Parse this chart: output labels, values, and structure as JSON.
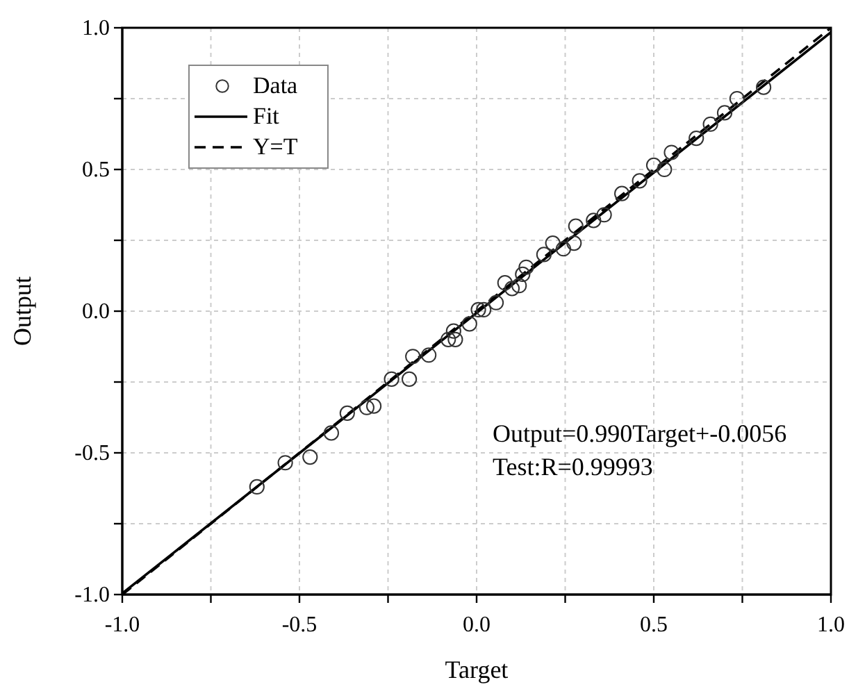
{
  "chart_data": {
    "type": "scatter",
    "xlabel": "Target",
    "ylabel": "Output",
    "xlim": [
      -1,
      1
    ],
    "ylim": [
      -1,
      1
    ],
    "xticks": [
      {
        "value": -1,
        "label": "-1.0"
      },
      {
        "value": -0.75,
        "label": null
      },
      {
        "value": -0.5,
        "label": "-0.5"
      },
      {
        "value": -0.25,
        "label": null
      },
      {
        "value": 0,
        "label": "0.0"
      },
      {
        "value": 0.25,
        "label": null
      },
      {
        "value": 0.5,
        "label": "0.5"
      },
      {
        "value": 0.75,
        "label": null
      },
      {
        "value": 1,
        "label": "1.0"
      }
    ],
    "yticks": [
      {
        "value": -1,
        "label": "-1.0"
      },
      {
        "value": -0.75,
        "label": null
      },
      {
        "value": -0.5,
        "label": "-0.5"
      },
      {
        "value": -0.25,
        "label": null
      },
      {
        "value": 0,
        "label": "0.0"
      },
      {
        "value": 0.25,
        "label": null
      },
      {
        "value": 0.5,
        "label": "0.5"
      },
      {
        "value": 0.75,
        "label": null
      },
      {
        "value": 1,
        "label": "1.0"
      }
    ],
    "grid": true,
    "legend": "top left",
    "series": [
      {
        "name": "Data",
        "marker": "circle",
        "color": "#333333",
        "x": [
          -0.62,
          -0.54,
          -0.47,
          -0.41,
          -0.365,
          -0.31,
          -0.29,
          -0.24,
          -0.19,
          -0.18,
          -0.135,
          -0.08,
          -0.06,
          -0.065,
          -0.02,
          0.005,
          0.02,
          0.055,
          0.08,
          0.1,
          0.12,
          0.13,
          0.14,
          0.19,
          0.215,
          0.245,
          0.275,
          0.28,
          0.33,
          0.36,
          0.41,
          0.46,
          0.5,
          0.53,
          0.55,
          0.62,
          0.66,
          0.7,
          0.735,
          0.81
        ],
        "values": [
          -0.62,
          -0.535,
          -0.515,
          -0.43,
          -0.36,
          -0.34,
          -0.335,
          -0.24,
          -0.24,
          -0.16,
          -0.155,
          -0.1,
          -0.1,
          -0.07,
          -0.045,
          0.005,
          0.005,
          0.03,
          0.1,
          0.08,
          0.09,
          0.13,
          0.155,
          0.2,
          0.24,
          0.22,
          0.24,
          0.3,
          0.32,
          0.34,
          0.415,
          0.46,
          0.515,
          0.5,
          0.56,
          0.61,
          0.66,
          0.7,
          0.75,
          0.79
        ]
      },
      {
        "name": "Fit",
        "type": "line",
        "color": "#000000",
        "line_style": "solid",
        "marker": "none",
        "x": [
          -1,
          1
        ],
        "values": [
          -0.996,
          0.984
        ]
      },
      {
        "name": "Y=T",
        "type": "line",
        "color": "#000000",
        "line_style": "dashed",
        "marker": "none",
        "x": [
          -1,
          1
        ],
        "values": [
          -1,
          1
        ]
      }
    ],
    "annotations": [
      "Output=0.990Target+-0.0056",
      "Test:R=0.99993"
    ]
  }
}
